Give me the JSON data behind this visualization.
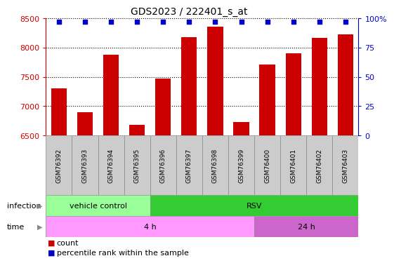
{
  "title": "GDS2023 / 222401_s_at",
  "samples": [
    "GSM76392",
    "GSM76393",
    "GSM76394",
    "GSM76395",
    "GSM76396",
    "GSM76397",
    "GSM76398",
    "GSM76399",
    "GSM76400",
    "GSM76401",
    "GSM76402",
    "GSM76403"
  ],
  "counts": [
    7300,
    6900,
    7880,
    6680,
    7470,
    8180,
    8360,
    6730,
    7710,
    7900,
    8160,
    8220
  ],
  "percentile_ranks": [
    97,
    97,
    97,
    97,
    97,
    97,
    97,
    97,
    97,
    97,
    97,
    97
  ],
  "ylim_left": [
    6500,
    8500
  ],
  "ylim_right": [
    0,
    100
  ],
  "yticks_left": [
    6500,
    7000,
    7500,
    8000,
    8500
  ],
  "yticks_right": [
    0,
    25,
    50,
    75,
    100
  ],
  "bar_color": "#cc0000",
  "dot_color": "#0000cc",
  "infection_labels": [
    {
      "label": "vehicle control",
      "start": 0,
      "end": 3,
      "color": "#99ff99"
    },
    {
      "label": "RSV",
      "start": 4,
      "end": 11,
      "color": "#33cc33"
    }
  ],
  "time_labels": [
    {
      "label": "4 h",
      "start": 0,
      "end": 7,
      "color": "#ff99ff"
    },
    {
      "label": "24 h",
      "start": 8,
      "end": 11,
      "color": "#cc66cc"
    }
  ],
  "infection_row_label": "infection",
  "time_row_label": "time",
  "legend_count_label": "count",
  "legend_percentile_label": "percentile rank within the sample",
  "axis_color_left": "#cc0000",
  "axis_color_right": "#0000cc",
  "background_color": "#ffffff",
  "sample_bg_color": "#cccccc"
}
